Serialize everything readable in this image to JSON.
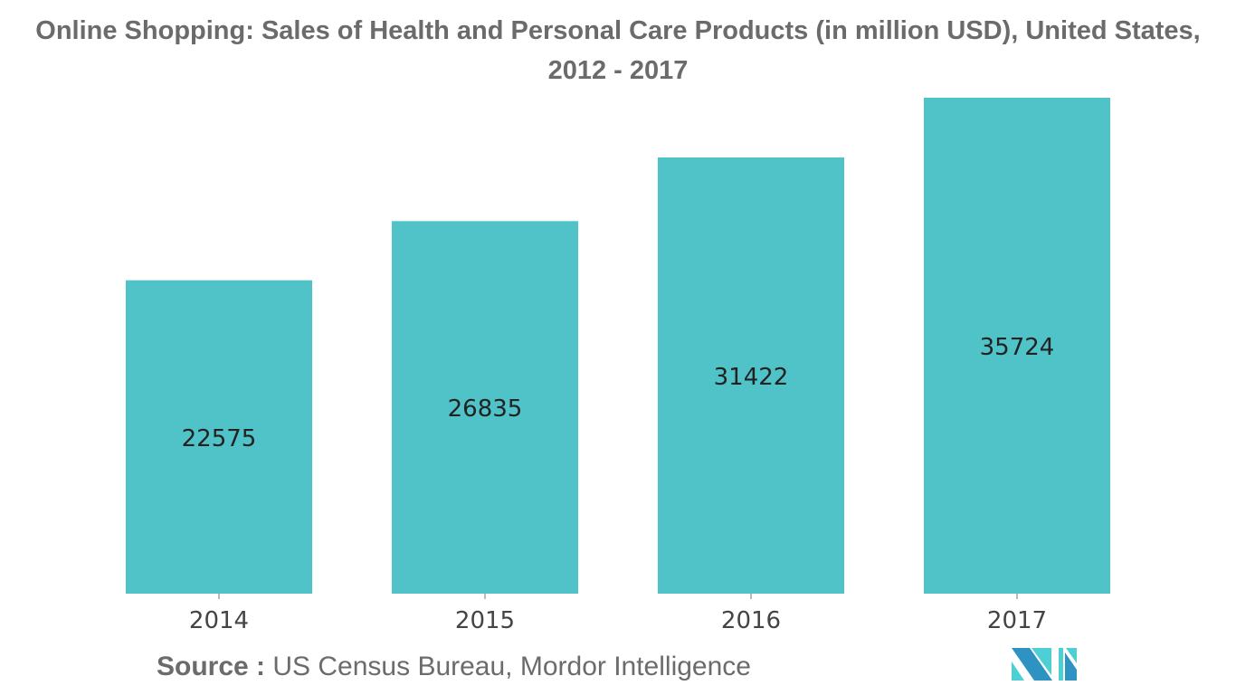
{
  "chart_data": {
    "type": "bar",
    "title": "Online Shopping: Sales of Health and Personal Care Products (in million USD), United States, 2012 - 2017",
    "categories": [
      "2014",
      "2015",
      "2016",
      "2017"
    ],
    "values": [
      22575,
      26835,
      31422,
      35724
    ],
    "xlabel": "",
    "ylabel": "",
    "ylim": [
      0,
      35724
    ],
    "grid": false,
    "bar_color": "#50c3c8"
  },
  "source": {
    "label": "Source :",
    "text": "US Census Bureau, Mordor Intelligence"
  },
  "logo": {
    "text": "Mordor Intelligence",
    "colors": [
      "#2e93c2",
      "#4ecfd3"
    ]
  }
}
